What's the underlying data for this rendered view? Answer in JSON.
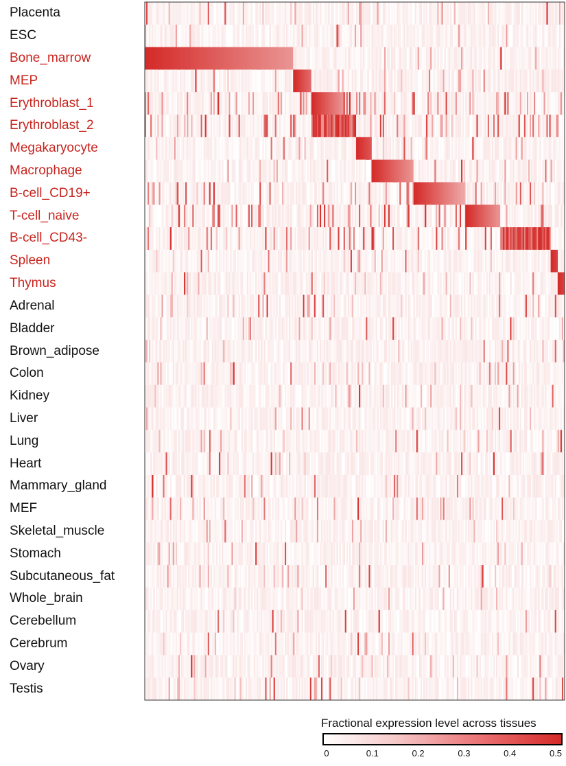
{
  "chart_data": {
    "type": "heatmap",
    "title": "",
    "xlabel": "",
    "ylabel": "",
    "rows": [
      {
        "label": "Placenta",
        "highlight": false
      },
      {
        "label": "ESC",
        "highlight": false
      },
      {
        "label": "Bone_marrow",
        "highlight": true
      },
      {
        "label": "MEP",
        "highlight": true
      },
      {
        "label": "Erythroblast_1",
        "highlight": true
      },
      {
        "label": "Erythroblast_2",
        "highlight": true
      },
      {
        "label": "Megakaryocyte",
        "highlight": true
      },
      {
        "label": "Macrophage",
        "highlight": true
      },
      {
        "label": "B-cell_CD19+",
        "highlight": true
      },
      {
        "label": "T-cell_naive",
        "highlight": true
      },
      {
        "label": "B-cell_CD43-",
        "highlight": true
      },
      {
        "label": "Spleen",
        "highlight": true
      },
      {
        "label": "Thymus",
        "highlight": true
      },
      {
        "label": "Adrenal",
        "highlight": false
      },
      {
        "label": "Bladder",
        "highlight": false
      },
      {
        "label": "Brown_adipose",
        "highlight": false
      },
      {
        "label": "Colon",
        "highlight": false
      },
      {
        "label": "Kidney",
        "highlight": false
      },
      {
        "label": "Liver",
        "highlight": false
      },
      {
        "label": "Lung",
        "highlight": false
      },
      {
        "label": "Heart",
        "highlight": false
      },
      {
        "label": "Mammary_gland",
        "highlight": false
      },
      {
        "label": "MEF",
        "highlight": false
      },
      {
        "label": "Skeletal_muscle",
        "highlight": false
      },
      {
        "label": "Stomach",
        "highlight": false
      },
      {
        "label": "Subcutaneous_fat",
        "highlight": false
      },
      {
        "label": "Whole_brain",
        "highlight": false
      },
      {
        "label": "Cerebellum",
        "highlight": false
      },
      {
        "label": "Cerebrum",
        "highlight": false
      },
      {
        "label": "Ovary",
        "highlight": false
      },
      {
        "label": "Testis",
        "highlight": false
      }
    ],
    "gene_count": 300,
    "blocks": [
      {
        "row": "Bone_marrow",
        "genes": [
          0,
          105
        ],
        "peak": 0.5,
        "tail": 0.25
      },
      {
        "row": "MEP",
        "genes": [
          106,
          118
        ],
        "peak": 0.5,
        "tail": 0.35
      },
      {
        "row": "Erythroblast_1",
        "genes": [
          119,
          141
        ],
        "peak": 0.5,
        "tail": 0.25
      },
      {
        "row": "Erythroblast_2",
        "genes": [
          119,
          150
        ],
        "peak": 0.45,
        "tail": 0.35
      },
      {
        "row": "Megakaryocyte",
        "genes": [
          151,
          161
        ],
        "peak": 0.5,
        "tail": 0.4
      },
      {
        "row": "Macrophage",
        "genes": [
          162,
          191
        ],
        "peak": 0.5,
        "tail": 0.25
      },
      {
        "row": "B-cell_CD19+",
        "genes": [
          192,
          228
        ],
        "peak": 0.5,
        "tail": 0.2
      },
      {
        "row": "T-cell_naive",
        "genes": [
          229,
          253
        ],
        "peak": 0.5,
        "tail": 0.25
      },
      {
        "row": "B-cell_CD43-",
        "genes": [
          254,
          289
        ],
        "peak": 0.5,
        "tail": 0.3
      },
      {
        "row": "Spleen",
        "genes": [
          290,
          294
        ],
        "peak": 0.5,
        "tail": 0.45
      },
      {
        "row": "Thymus",
        "genes": [
          295,
          299
        ],
        "peak": 0.5,
        "tail": 0.45
      }
    ],
    "colorbar": {
      "label": "Fractional expression level across tissues",
      "min": 0,
      "max": 0.5,
      "ticks": [
        "0",
        "0.1",
        "0.2",
        "0.3",
        "0.4",
        "0.5"
      ],
      "low_color": "#ffffff",
      "high_color": "#d42a28"
    },
    "colors": {
      "highlight_label": "#c8241e",
      "normal_label": "#111111",
      "cell_high": "#d42a28"
    }
  }
}
